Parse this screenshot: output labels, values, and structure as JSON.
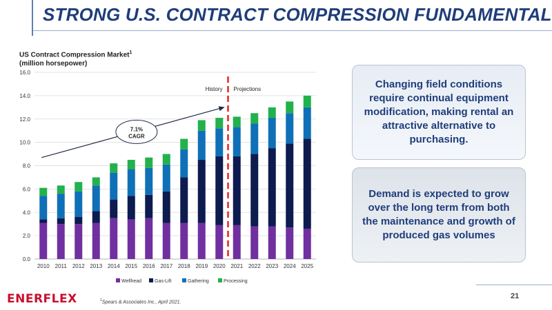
{
  "slide": {
    "title": "STRONG U.S. CONTRACT COMPRESSION FUNDAMENTALS",
    "page_number": "21",
    "logo_text": "ENERFLEX",
    "footnote_sup": "1",
    "footnote": "Spears & Associates Inc., April 2021.",
    "colors": {
      "title": "#1f3d7a",
      "logo": "#c8102e",
      "accent_line": "#5b7fb0"
    }
  },
  "chart_title": {
    "line1": "US Contract Compression Market",
    "sup": "1",
    "line2": "(million horsepower)"
  },
  "chart_data": {
    "type": "bar",
    "stacked": true,
    "ylim": [
      0,
      16
    ],
    "yticks": [
      "0.0",
      "2.0",
      "4.0",
      "6.0",
      "8.0",
      "10.0",
      "12.0",
      "14.0",
      "16.0"
    ],
    "grid": true,
    "legend_position": "bottom",
    "categories": [
      "2010",
      "2011",
      "2012",
      "2013",
      "2014",
      "2015",
      "2016",
      "2017",
      "2018",
      "2019",
      "2020",
      "2021",
      "2022",
      "2023",
      "2024",
      "2025"
    ],
    "series": [
      {
        "name": "Wellhead",
        "color": "#7030a0",
        "values": [
          3.1,
          3.0,
          3.0,
          3.1,
          3.5,
          3.4,
          3.5,
          3.1,
          3.1,
          3.1,
          2.9,
          2.9,
          2.8,
          2.8,
          2.7,
          2.6
        ]
      },
      {
        "name": "Gas-Lift",
        "color": "#0d1b4f",
        "values": [
          0.3,
          0.5,
          0.6,
          1.0,
          1.6,
          2.0,
          2.0,
          2.7,
          3.9,
          5.4,
          5.9,
          5.9,
          6.2,
          6.7,
          7.2,
          7.7
        ]
      },
      {
        "name": "Gathering",
        "color": "#0f70b7",
        "values": [
          2.0,
          2.1,
          2.2,
          2.2,
          2.3,
          2.3,
          2.3,
          2.3,
          2.4,
          2.5,
          2.4,
          2.5,
          2.6,
          2.6,
          2.6,
          2.7
        ]
      },
      {
        "name": "Processing",
        "color": "#22b14c",
        "values": [
          0.7,
          0.7,
          0.8,
          0.7,
          0.8,
          0.8,
          0.9,
          0.9,
          0.9,
          0.9,
          0.9,
          0.9,
          0.9,
          0.9,
          1.0,
          1.0
        ]
      }
    ],
    "divider": {
      "after_category": "2020",
      "color": "#e8231f"
    },
    "divider_labels": {
      "left": "History",
      "right": "Projections"
    },
    "annotation": {
      "line1": "7.1%",
      "line2": "CAGR"
    }
  },
  "boxes": {
    "box1": "Changing field conditions require continual equipment modification, making rental an attractive alternative to purchasing.",
    "box2": "Demand is expected to grow over the long term from both the maintenance and growth of produced gas volumes"
  }
}
